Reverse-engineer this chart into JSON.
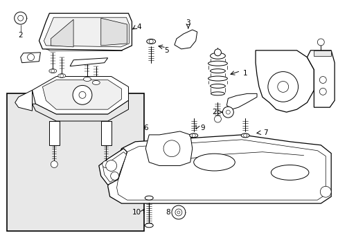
{
  "bg_color": "#ffffff",
  "box_fill": "#e8e8e8",
  "fig_width": 4.89,
  "fig_height": 3.6,
  "dpi": 100
}
